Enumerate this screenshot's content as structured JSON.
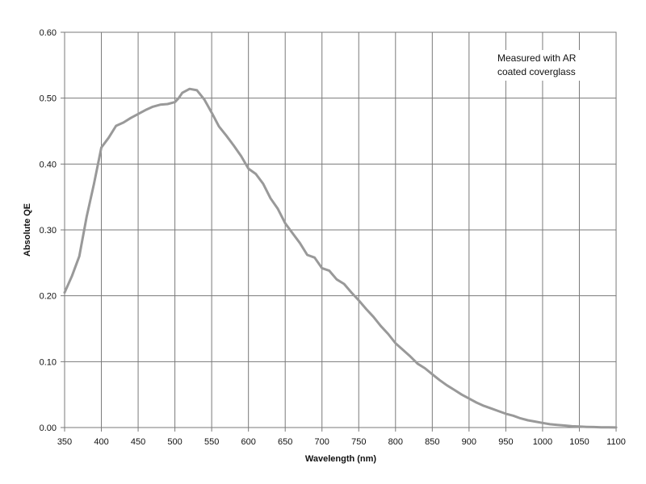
{
  "chart_data": {
    "type": "line",
    "title": "",
    "xlabel": "Wavelength (nm)",
    "ylabel": "Absolute QE",
    "xlim": [
      350,
      1100
    ],
    "ylim": [
      0,
      0.6
    ],
    "grid": true,
    "x_ticks": [
      350,
      400,
      450,
      500,
      550,
      600,
      650,
      700,
      750,
      800,
      850,
      900,
      950,
      1000,
      1050,
      1100
    ],
    "y_ticks": [
      "0.00",
      "0.10",
      "0.20",
      "0.30",
      "0.40",
      "0.50",
      "0.60"
    ],
    "annotation": [
      "Measured with AR",
      "coated coverglass"
    ],
    "series": [
      {
        "color": "#999999",
        "points": [
          [
            350,
            0.205
          ],
          [
            360,
            0.23
          ],
          [
            370,
            0.26
          ],
          [
            380,
            0.32
          ],
          [
            390,
            0.37
          ],
          [
            400,
            0.425
          ],
          [
            410,
            0.44
          ],
          [
            420,
            0.458
          ],
          [
            430,
            0.463
          ],
          [
            440,
            0.47
          ],
          [
            450,
            0.476
          ],
          [
            460,
            0.482
          ],
          [
            470,
            0.487
          ],
          [
            480,
            0.49
          ],
          [
            490,
            0.491
          ],
          [
            500,
            0.494
          ],
          [
            505,
            0.5
          ],
          [
            510,
            0.508
          ],
          [
            520,
            0.514
          ],
          [
            530,
            0.512
          ],
          [
            540,
            0.498
          ],
          [
            550,
            0.478
          ],
          [
            560,
            0.457
          ],
          [
            570,
            0.443
          ],
          [
            580,
            0.428
          ],
          [
            590,
            0.412
          ],
          [
            600,
            0.393
          ],
          [
            610,
            0.385
          ],
          [
            620,
            0.37
          ],
          [
            630,
            0.348
          ],
          [
            640,
            0.332
          ],
          [
            650,
            0.31
          ],
          [
            660,
            0.295
          ],
          [
            670,
            0.28
          ],
          [
            680,
            0.262
          ],
          [
            690,
            0.258
          ],
          [
            700,
            0.242
          ],
          [
            710,
            0.238
          ],
          [
            720,
            0.225
          ],
          [
            730,
            0.218
          ],
          [
            740,
            0.205
          ],
          [
            750,
            0.193
          ],
          [
            760,
            0.18
          ],
          [
            770,
            0.168
          ],
          [
            780,
            0.154
          ],
          [
            790,
            0.142
          ],
          [
            800,
            0.128
          ],
          [
            810,
            0.118
          ],
          [
            820,
            0.108
          ],
          [
            830,
            0.097
          ],
          [
            840,
            0.09
          ],
          [
            850,
            0.081
          ],
          [
            860,
            0.072
          ],
          [
            870,
            0.064
          ],
          [
            880,
            0.057
          ],
          [
            890,
            0.05
          ],
          [
            900,
            0.044
          ],
          [
            910,
            0.038
          ],
          [
            920,
            0.033
          ],
          [
            930,
            0.029
          ],
          [
            940,
            0.025
          ],
          [
            950,
            0.021
          ],
          [
            960,
            0.018
          ],
          [
            970,
            0.014
          ],
          [
            980,
            0.011
          ],
          [
            990,
            0.009
          ],
          [
            1000,
            0.007
          ],
          [
            1010,
            0.005
          ],
          [
            1020,
            0.004
          ],
          [
            1030,
            0.003
          ],
          [
            1040,
            0.002
          ],
          [
            1050,
            0.0015
          ],
          [
            1060,
            0.001
          ],
          [
            1070,
            0.0007
          ],
          [
            1080,
            0.0004
          ],
          [
            1090,
            0.0002
          ],
          [
            1100,
            0.0001
          ]
        ]
      }
    ]
  }
}
